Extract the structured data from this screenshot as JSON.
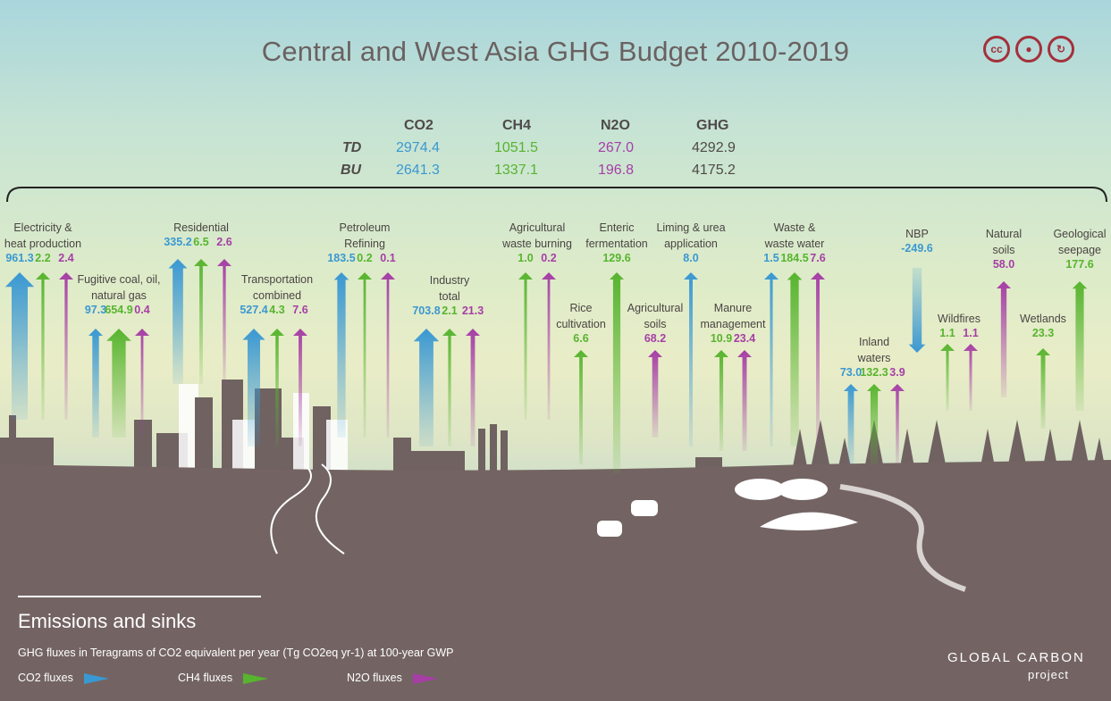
{
  "title": "Central and West Asia GHG Budget 2010-2019",
  "summary": {
    "headers": {
      "co2": "CO2",
      "ch4": "CH4",
      "n2o": "N2O",
      "ghg": "GHG"
    },
    "rows": [
      {
        "label": "TD",
        "co2": "2974.4",
        "ch4": "1051.5",
        "n2o": "267.0",
        "ghg": "4292.9"
      },
      {
        "label": "BU",
        "co2": "2641.3",
        "ch4": "1337.1",
        "n2o": "196.8",
        "ghg": "4175.2"
      }
    ]
  },
  "colors": {
    "co2": "#3a98d2",
    "ch4": "#57b42e",
    "n2o": "#a63ea6",
    "ground": "#736463"
  },
  "fluxes": [
    {
      "label_lines": [
        "Electricity &",
        "heat production"
      ],
      "co2": "961.3",
      "ch4": "2.2",
      "n2o": "2.4"
    },
    {
      "label_lines": [
        "Fugitive coal, oil,",
        "natural gas"
      ],
      "co2": "97.3",
      "ch4": "654.9",
      "n2o": "0.4"
    },
    {
      "label_lines": [
        "Residential"
      ],
      "co2": "335.2",
      "ch4": "6.5",
      "n2o": "2.6"
    },
    {
      "label_lines": [
        "Transportation",
        "combined"
      ],
      "co2": "527.4",
      "ch4": "4.3",
      "n2o": "7.6"
    },
    {
      "label_lines": [
        "Petroleum",
        "Refining"
      ],
      "co2": "183.5",
      "ch4": "0.2",
      "n2o": "0.1"
    },
    {
      "label_lines": [
        "Industry",
        "total"
      ],
      "co2": "703.8",
      "ch4": "2.1",
      "n2o": "21.3"
    },
    {
      "label_lines": [
        "Agricultural",
        "waste  burning"
      ],
      "ch4": "1.0",
      "n2o": "0.2"
    },
    {
      "label_lines": [
        "Rice",
        "cultivation"
      ],
      "ch4": "6.6"
    },
    {
      "label_lines": [
        "Enteric",
        "fermentation"
      ],
      "ch4": "129.6"
    },
    {
      "label_lines": [
        "Agricultural",
        "soils"
      ],
      "n2o": "68.2"
    },
    {
      "label_lines": [
        "Liming & urea",
        "application"
      ],
      "co2": "8.0"
    },
    {
      "label_lines": [
        "Manure",
        "management"
      ],
      "ch4": "10.9",
      "n2o": "23.4"
    },
    {
      "label_lines": [
        "Waste &",
        "waste water"
      ],
      "co2": "1.5",
      "ch4": "184.5",
      "n2o": "7.6"
    },
    {
      "label_lines": [
        "Inland",
        "waters"
      ],
      "co2": "73.0",
      "ch4": "132.3",
      "n2o": "3.9"
    },
    {
      "label_lines": [
        "NBP"
      ],
      "co2": "-249.6"
    },
    {
      "label_lines": [
        "Wildfires"
      ],
      "ch4": "1.1",
      "n2o": "1.1"
    },
    {
      "label_lines": [
        "Natural",
        "soils"
      ],
      "n2o": "58.0"
    },
    {
      "label_lines": [
        "Wetlands"
      ],
      "ch4": "23.3"
    },
    {
      "label_lines": [
        "Geological",
        "seepage"
      ],
      "ch4": "177.6"
    }
  ],
  "legend": {
    "title": "Emissions and sinks",
    "subtitle": "GHG fluxes in Teragrams of CO2 equivalent per year (Tg CO2eq yr-1) at 100-year GWP",
    "items": [
      {
        "label": "CO2 fluxes",
        "gas": "co2"
      },
      {
        "label": "CH4 fluxes",
        "gas": "ch4"
      },
      {
        "label": "N2O fluxes",
        "gas": "n2o"
      }
    ]
  },
  "brand": {
    "line1": "GLOBAL CARBON",
    "line2": "project"
  },
  "license_icons": [
    "cc-icon",
    "by-icon",
    "sa-icon"
  ]
}
